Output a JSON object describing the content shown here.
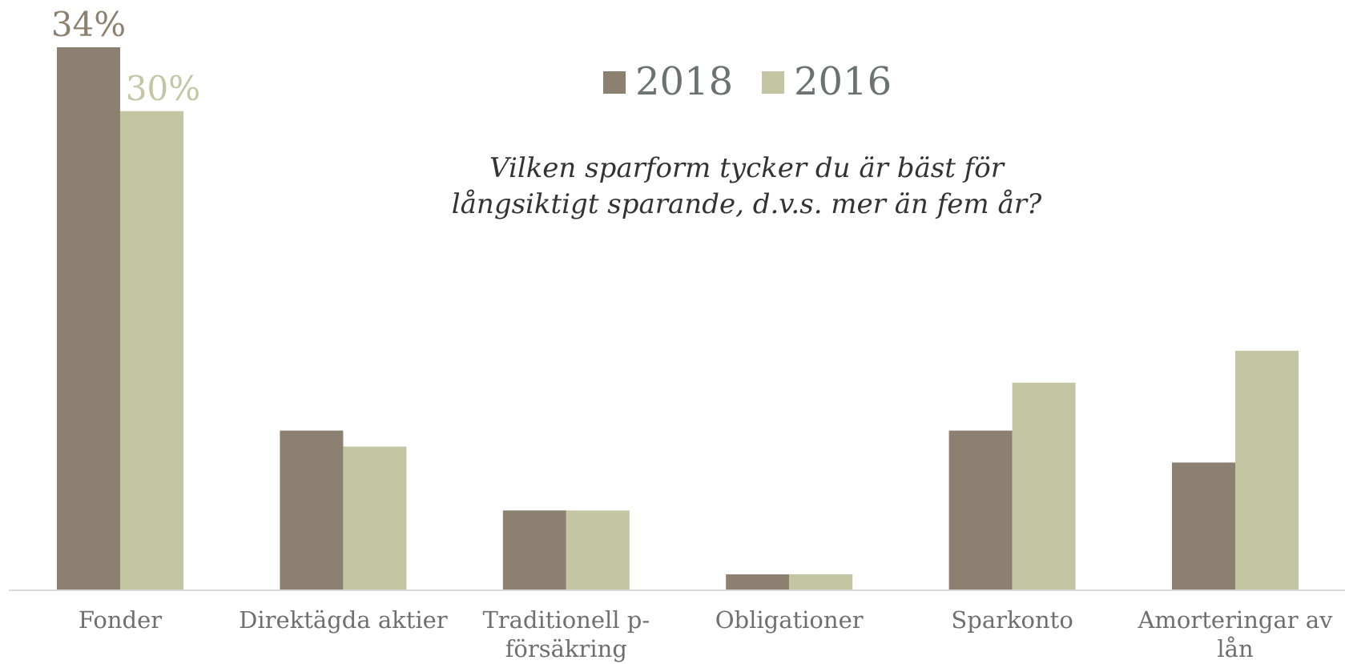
{
  "chart_data": {
    "type": "bar",
    "title": "Vilken sparform tycker du är bäst för långsiktigt sparande, d.v.s. mer än fem år?",
    "categories": [
      "Fonder",
      "Direktägda aktier",
      "Traditionell p-försäkring",
      "Obligationer",
      "Sparkonto",
      "Amorteringar av lån"
    ],
    "series": [
      {
        "name": "2018",
        "color": "#8c8070",
        "values": [
          34,
          10,
          5,
          1,
          10,
          8
        ],
        "value_labels": [
          "34%",
          null,
          null,
          null,
          null,
          null
        ]
      },
      {
        "name": "2016",
        "color": "#c4c5a3",
        "values": [
          30,
          9,
          5,
          1,
          13,
          15
        ],
        "value_labels": [
          "30%",
          null,
          null,
          null,
          null,
          null
        ]
      }
    ],
    "ylim": [
      0,
      34
    ],
    "grid": false,
    "legend": "top"
  }
}
